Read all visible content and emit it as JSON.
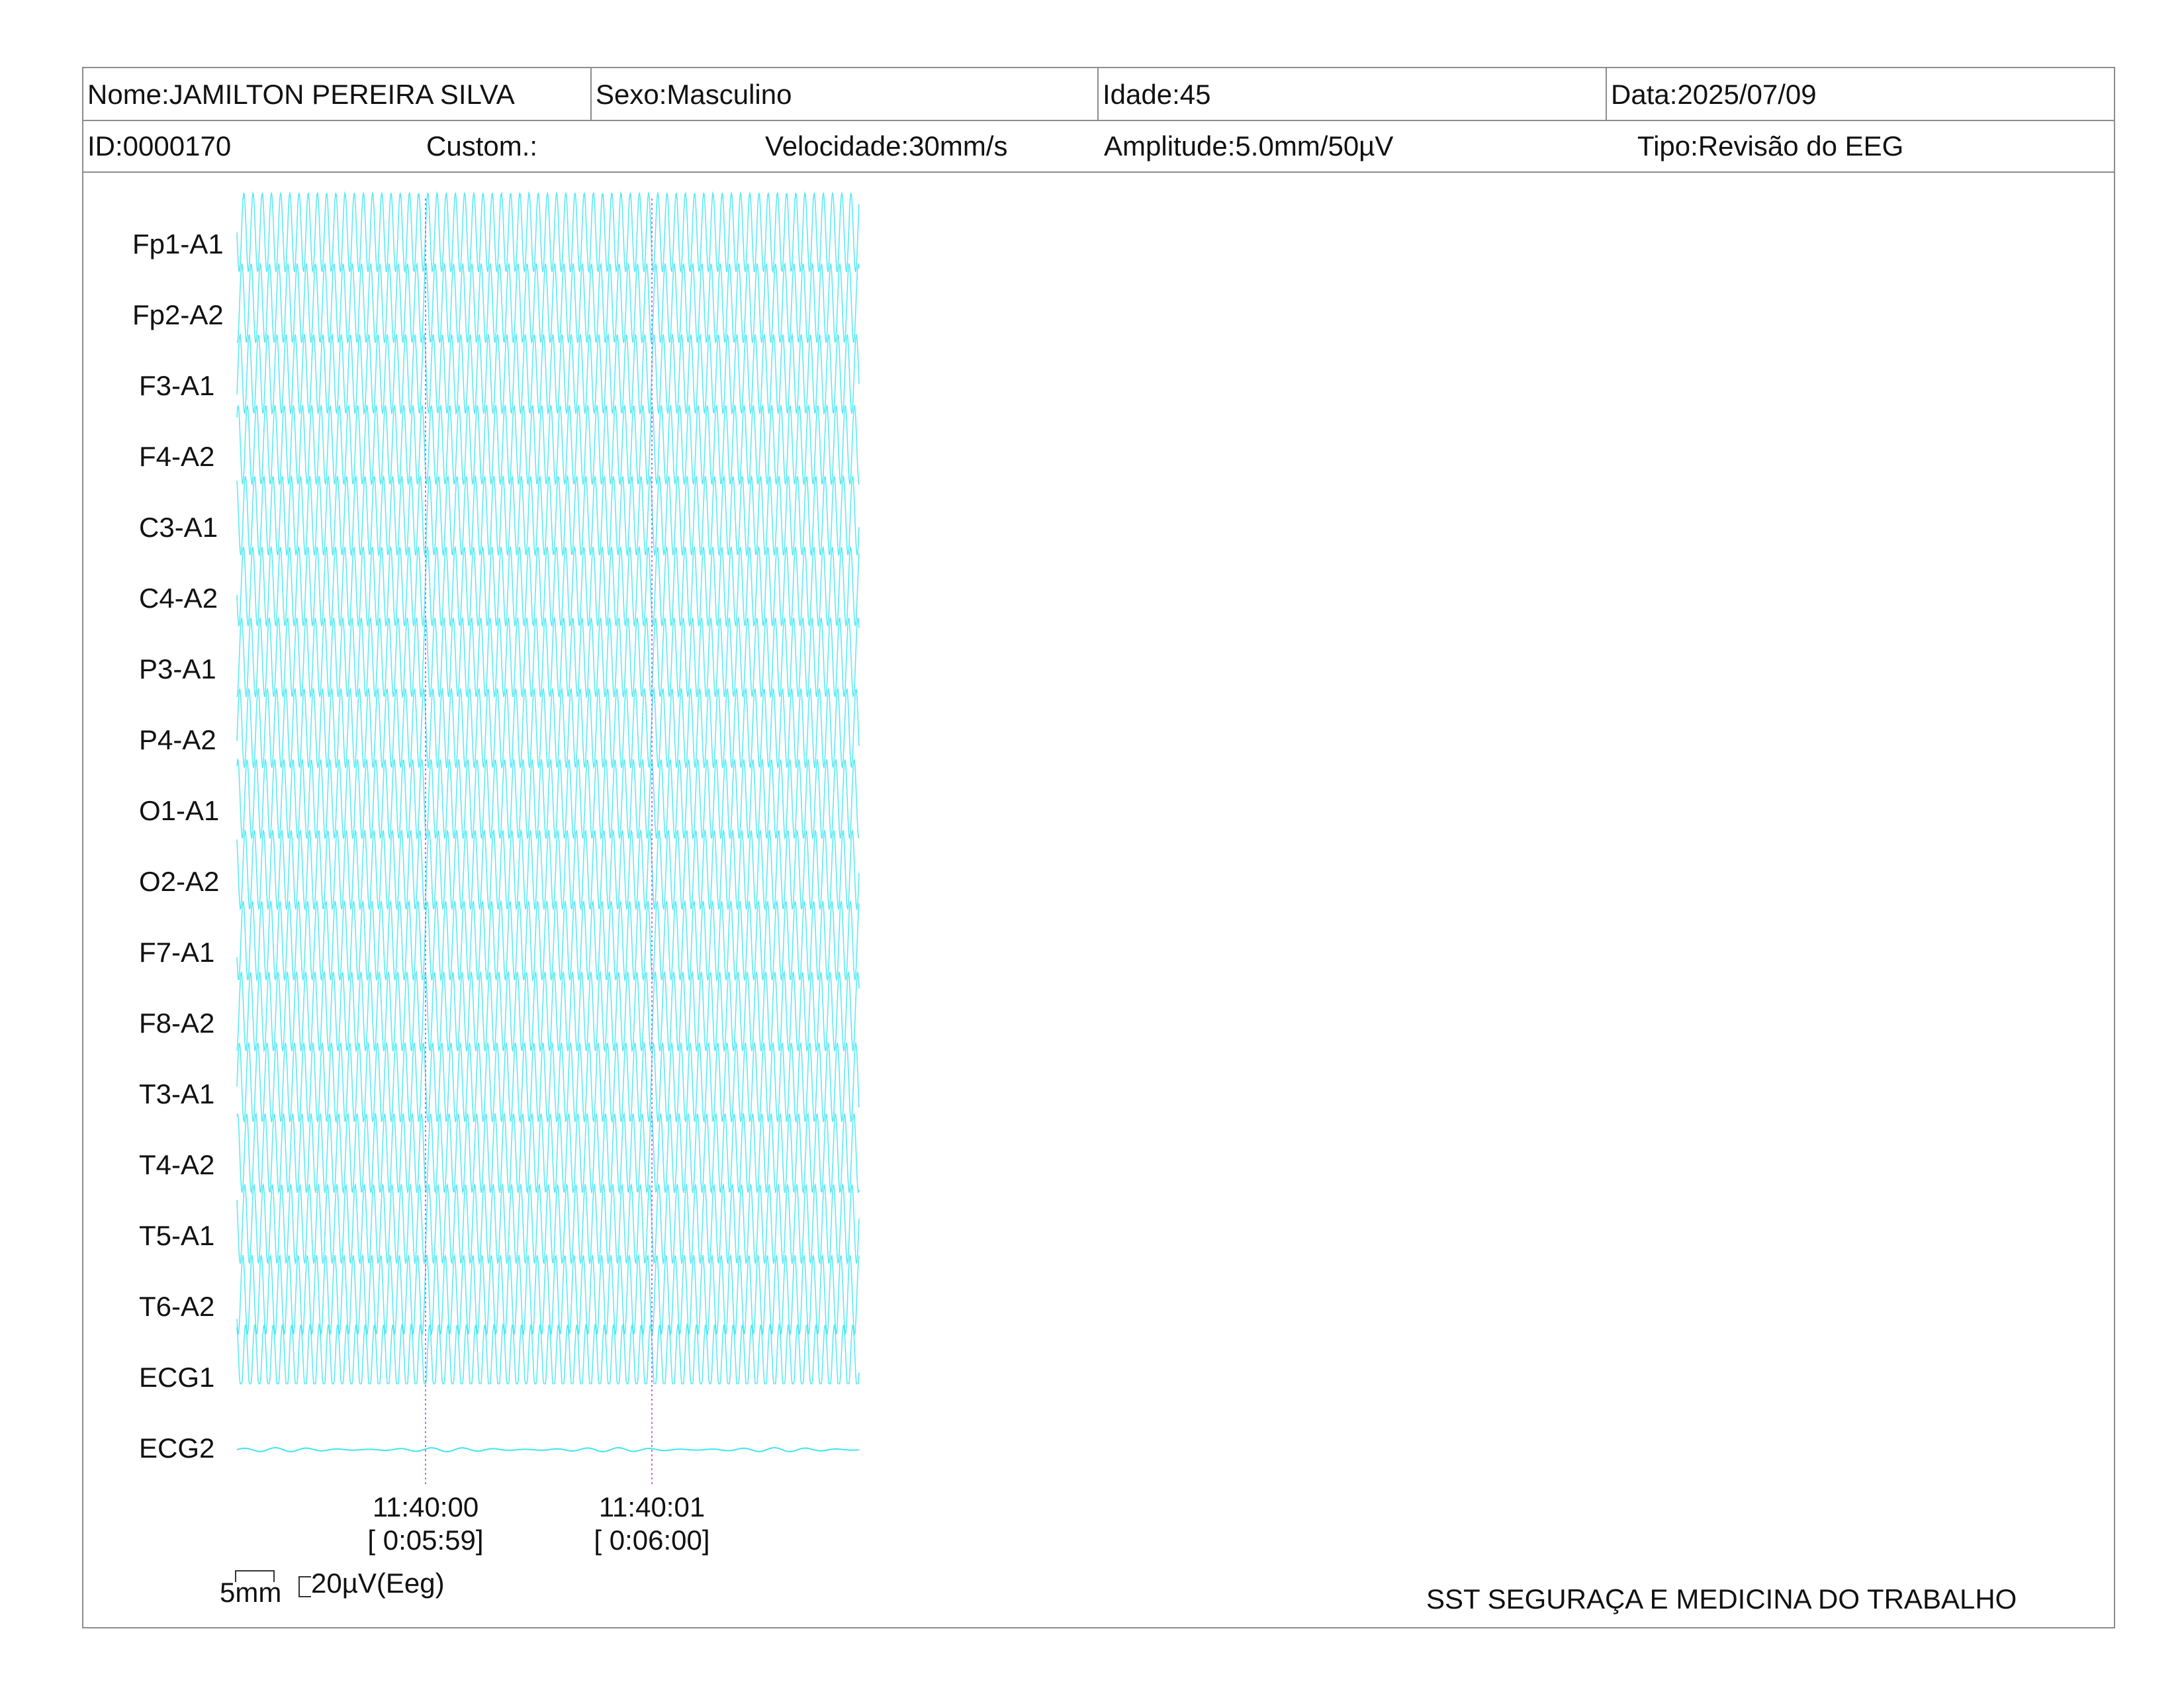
{
  "header": {
    "nome": "Nome:JAMILTON PEREIRA SILVA",
    "sexo": "Sexo:Masculino",
    "idade": "Idade:45",
    "data": "Data:2025/07/09",
    "id": "ID:0000170",
    "custom": "Custom.:",
    "velocidade": "Velocidade:30mm/s",
    "amplitude": "Amplitude:5.0mm/50µV",
    "tipo": "Tipo:Revisão do EEG"
  },
  "chart_data": {
    "type": "line",
    "channels": [
      "Fp1-A1",
      "Fp2-A2",
      "F3-A1",
      "F4-A2",
      "C3-A1",
      "C4-A2",
      "P3-A1",
      "P4-A2",
      "O1-A1",
      "O2-A2",
      "F7-A1",
      "F8-A2",
      "T3-A1",
      "T4-A2",
      "T5-A1",
      "T6-A2",
      "ECG1",
      "ECG2"
    ],
    "time_markers": [
      {
        "time": "11:40:00",
        "elapsed": "[ 0:05:59]"
      },
      {
        "time": "11:40:01",
        "elapsed": "[ 0:06:00]"
      }
    ],
    "trace_color": "#27e3ef",
    "marker_color": "#c86ae8"
  },
  "scale": {
    "time_label": "5mm",
    "amp_label": "20µV(Eeg)"
  },
  "footer": "SST SEGURAÇA E MEDICINA DO TRABALHO"
}
